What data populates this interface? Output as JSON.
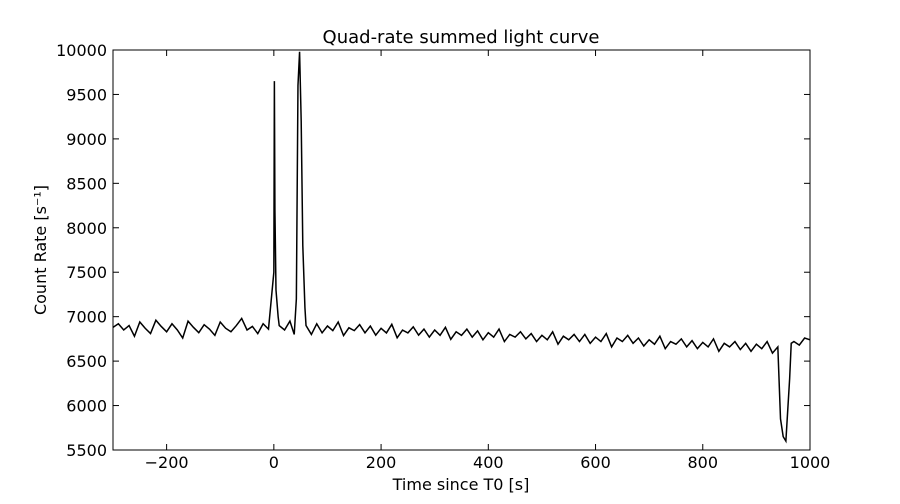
{
  "chart_data": {
    "type": "line",
    "title": "Quad-rate summed light curve",
    "x_label": "Time since T0 [s]",
    "y_label": "Count Rate [s⁻¹]",
    "x": [
      -300,
      -290,
      -280,
      -270,
      -260,
      -250,
      -240,
      -230,
      -220,
      -210,
      -200,
      -190,
      -180,
      -170,
      -160,
      -150,
      -140,
      -130,
      -120,
      -110,
      -100,
      -90,
      -80,
      -70,
      -60,
      -50,
      -40,
      -30,
      -20,
      -10,
      0,
      1,
      2,
      4,
      8,
      10,
      20,
      30,
      38,
      42,
      45,
      48,
      51,
      54,
      58,
      60,
      70,
      80,
      90,
      100,
      110,
      120,
      130,
      140,
      150,
      160,
      170,
      180,
      190,
      200,
      210,
      220,
      230,
      240,
      250,
      260,
      270,
      280,
      290,
      300,
      310,
      320,
      330,
      340,
      350,
      360,
      370,
      380,
      390,
      400,
      410,
      420,
      430,
      440,
      450,
      460,
      470,
      480,
      490,
      500,
      510,
      520,
      530,
      540,
      550,
      560,
      570,
      580,
      590,
      600,
      610,
      620,
      630,
      640,
      650,
      660,
      670,
      680,
      690,
      700,
      710,
      720,
      730,
      740,
      750,
      760,
      770,
      780,
      790,
      800,
      810,
      820,
      830,
      840,
      850,
      860,
      870,
      880,
      890,
      900,
      910,
      920,
      930,
      940,
      945,
      950,
      955,
      958,
      962,
      965,
      970,
      980,
      990,
      1000
    ],
    "series": [
      {
        "name": "light curve",
        "color": "#000000",
        "values": [
          6880,
          6920,
          6850,
          6900,
          6780,
          6940,
          6870,
          6810,
          6960,
          6890,
          6830,
          6920,
          6850,
          6760,
          6950,
          6880,
          6820,
          6910,
          6860,
          6790,
          6940,
          6870,
          6830,
          6900,
          6980,
          6850,
          6890,
          6810,
          6920,
          6860,
          7500,
          9650,
          8200,
          7300,
          7000,
          6900,
          6850,
          6950,
          6800,
          7200,
          9600,
          9980,
          9200,
          7800,
          7100,
          6900,
          6800,
          6920,
          6818,
          6895,
          6843,
          6940,
          6788,
          6875,
          6843,
          6911,
          6818,
          6894,
          6792,
          6869,
          6817,
          6914,
          6762,
          6849,
          6817,
          6885,
          6792,
          6860,
          6770,
          6850,
          6790,
          6880,
          6745,
          6830,
          6790,
          6860,
          6770,
          6840,
          6740,
          6820,
          6770,
          6860,
          6720,
          6800,
          6770,
          6830,
          6750,
          6810,
          6720,
          6790,
          6740,
          6830,
          6690,
          6780,
          6740,
          6800,
          6720,
          6800,
          6700,
          6770,
          6720,
          6810,
          6660,
          6760,
          6720,
          6790,
          6700,
          6760,
          6670,
          6740,
          6690,
          6780,
          6640,
          6720,
          6690,
          6750,
          6660,
          6730,
          6640,
          6710,
          6660,
          6750,
          6610,
          6700,
          6660,
          6720,
          6630,
          6700,
          6610,
          6690,
          6640,
          6720,
          6590,
          6660,
          5850,
          5650,
          5600,
          5900,
          6300,
          6700,
          6720,
          6680,
          6760,
          6740
        ]
      }
    ],
    "xlim": [
      -300,
      1000
    ],
    "xticks": [
      {
        "value": -200,
        "label": "−200"
      },
      0,
      200,
      400,
      600,
      800,
      1000
    ],
    "ylim": [
      5500,
      10000
    ],
    "yticks": [
      5500,
      6000,
      6500,
      7000,
      7500,
      8000,
      8500,
      9000,
      9500,
      10000
    ]
  }
}
